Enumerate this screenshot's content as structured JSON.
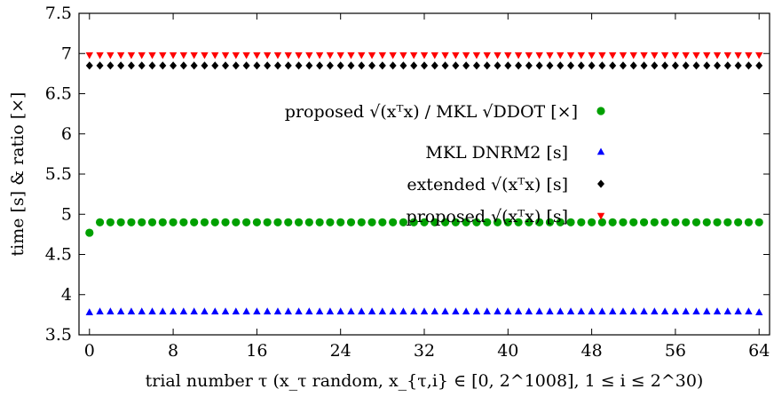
{
  "chart_data": {
    "type": "scatter",
    "title": "",
    "xlabel": "trial number τ (x_τ random, x_{τ,i} ∈ [0, 2^1008], 1 ≤ i ≤ 2^30)",
    "ylabel": "time [s] & ratio [×]",
    "xlim": [
      -1,
      65
    ],
    "ylim": [
      3.5,
      7.5
    ],
    "xticks": [
      0,
      8,
      16,
      24,
      32,
      40,
      48,
      56,
      64
    ],
    "yticks": [
      3.5,
      4,
      4.5,
      5,
      5.5,
      6,
      6.5,
      7,
      7.5
    ],
    "x": {
      "start": 0,
      "end": 64,
      "step": 1
    },
    "grid": false,
    "legend_position": "center",
    "series": [
      {
        "name": "proposed √(xᵀx) / MKL √DDOT [×]",
        "marker": "circle",
        "color": "#00a000",
        "values": [
          4.77,
          4.9,
          4.9,
          4.9,
          4.9,
          4.9,
          4.9,
          4.9,
          4.9,
          4.9,
          4.9,
          4.9,
          4.9,
          4.9,
          4.9,
          4.9,
          4.9,
          4.9,
          4.9,
          4.9,
          4.9,
          4.9,
          4.9,
          4.9,
          4.9,
          4.9,
          4.9,
          4.9,
          4.9,
          4.9,
          4.9,
          4.9,
          4.9,
          4.9,
          4.9,
          4.9,
          4.9,
          4.9,
          4.9,
          4.9,
          4.9,
          4.9,
          4.9,
          4.9,
          4.9,
          4.9,
          4.9,
          4.9,
          4.9,
          4.9,
          4.9,
          4.9,
          4.9,
          4.9,
          4.9,
          4.9,
          4.9,
          4.9,
          4.9,
          4.9,
          4.9,
          4.9,
          4.9,
          4.9,
          4.9
        ]
      },
      {
        "name": "MKL DNRM2 [s]",
        "marker": "triangle-up",
        "color": "#0000ff",
        "values": [
          3.78,
          3.79,
          3.79,
          3.79,
          3.79,
          3.79,
          3.79,
          3.79,
          3.79,
          3.79,
          3.79,
          3.79,
          3.79,
          3.79,
          3.79,
          3.79,
          3.79,
          3.79,
          3.79,
          3.79,
          3.79,
          3.79,
          3.79,
          3.79,
          3.79,
          3.79,
          3.79,
          3.79,
          3.79,
          3.79,
          3.79,
          3.79,
          3.79,
          3.79,
          3.79,
          3.79,
          3.79,
          3.79,
          3.79,
          3.79,
          3.79,
          3.79,
          3.79,
          3.79,
          3.79,
          3.79,
          3.79,
          3.79,
          3.79,
          3.79,
          3.79,
          3.79,
          3.79,
          3.79,
          3.79,
          3.79,
          3.79,
          3.79,
          3.79,
          3.79,
          3.79,
          3.79,
          3.79,
          3.79,
          3.78
        ]
      },
      {
        "name": "extended √(xᵀx) [s]",
        "marker": "diamond",
        "color": "#000000",
        "values": [
          6.85,
          6.85,
          6.85,
          6.85,
          6.85,
          6.85,
          6.85,
          6.85,
          6.85,
          6.85,
          6.85,
          6.85,
          6.85,
          6.85,
          6.85,
          6.85,
          6.85,
          6.85,
          6.85,
          6.85,
          6.85,
          6.85,
          6.85,
          6.85,
          6.85,
          6.85,
          6.85,
          6.85,
          6.85,
          6.85,
          6.85,
          6.85,
          6.85,
          6.85,
          6.85,
          6.85,
          6.85,
          6.85,
          6.85,
          6.85,
          6.85,
          6.85,
          6.85,
          6.85,
          6.85,
          6.85,
          6.85,
          6.85,
          6.85,
          6.85,
          6.85,
          6.85,
          6.85,
          6.85,
          6.85,
          6.85,
          6.85,
          6.85,
          6.85,
          6.85,
          6.85,
          6.85,
          6.85,
          6.85,
          6.85
        ]
      },
      {
        "name": "proposed √(xᵀx) [s]",
        "marker": "triangle-down",
        "color": "#ff0000",
        "values": [
          6.98,
          6.98,
          6.98,
          6.98,
          6.98,
          6.98,
          6.98,
          6.98,
          6.98,
          6.98,
          6.98,
          6.98,
          6.98,
          6.98,
          6.98,
          6.98,
          6.98,
          6.98,
          6.98,
          6.98,
          6.98,
          6.98,
          6.98,
          6.98,
          6.98,
          6.98,
          6.98,
          6.98,
          6.98,
          6.98,
          6.98,
          6.98,
          6.98,
          6.98,
          6.98,
          6.98,
          6.98,
          6.98,
          6.98,
          6.98,
          6.98,
          6.98,
          6.98,
          6.98,
          6.98,
          6.98,
          6.98,
          6.98,
          6.98,
          6.98,
          6.98,
          6.98,
          6.98,
          6.98,
          6.98,
          6.98,
          6.98,
          6.98,
          6.98,
          6.98,
          6.98,
          6.98,
          6.98,
          6.98,
          6.98
        ]
      }
    ]
  }
}
